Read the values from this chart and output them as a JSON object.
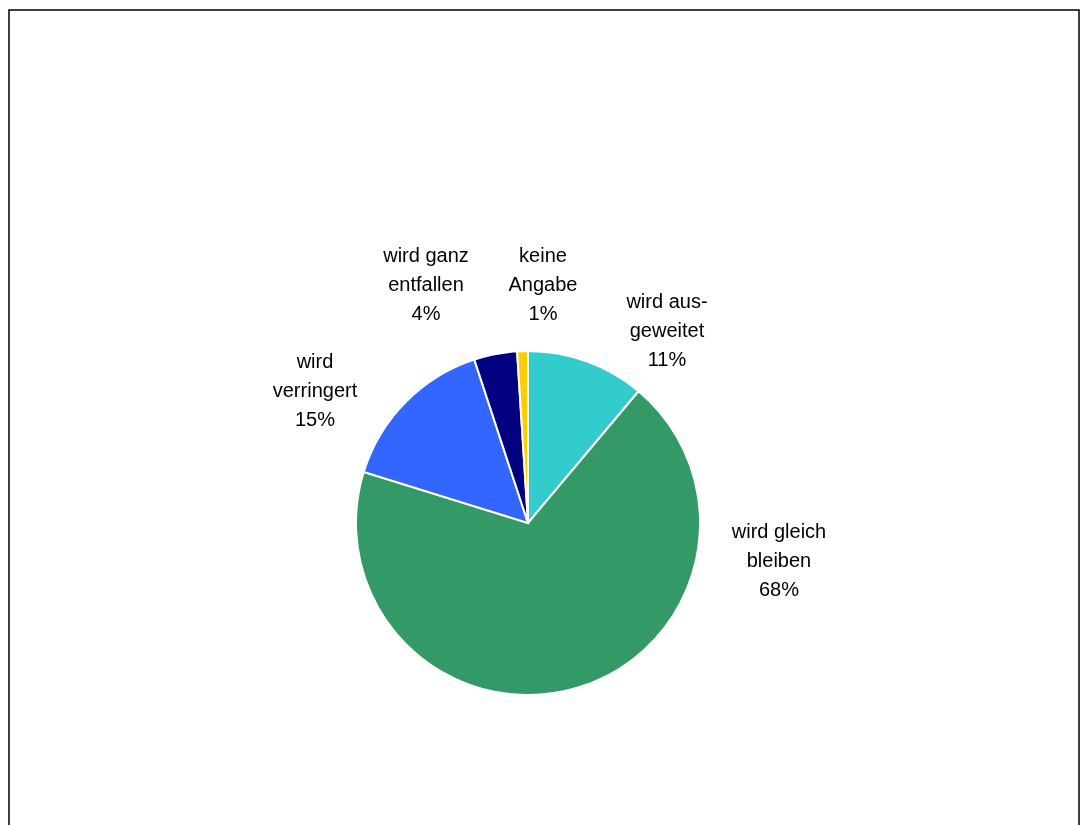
{
  "chart_data": {
    "type": "pie",
    "categories": [
      "wird aus-\ngeweitet",
      "wird gleich\nbleiben",
      "wird\nverringert",
      "wird ganz\nentfallen",
      "keine\nAngabe"
    ],
    "values": [
      11,
      68,
      15,
      4,
      1
    ],
    "colors": [
      "#33cccc",
      "#339966",
      "#3366ff",
      "#000080",
      "#ffcc00"
    ],
    "value_labels": [
      "11%",
      "68%",
      "15%",
      "4%",
      "1%"
    ]
  }
}
